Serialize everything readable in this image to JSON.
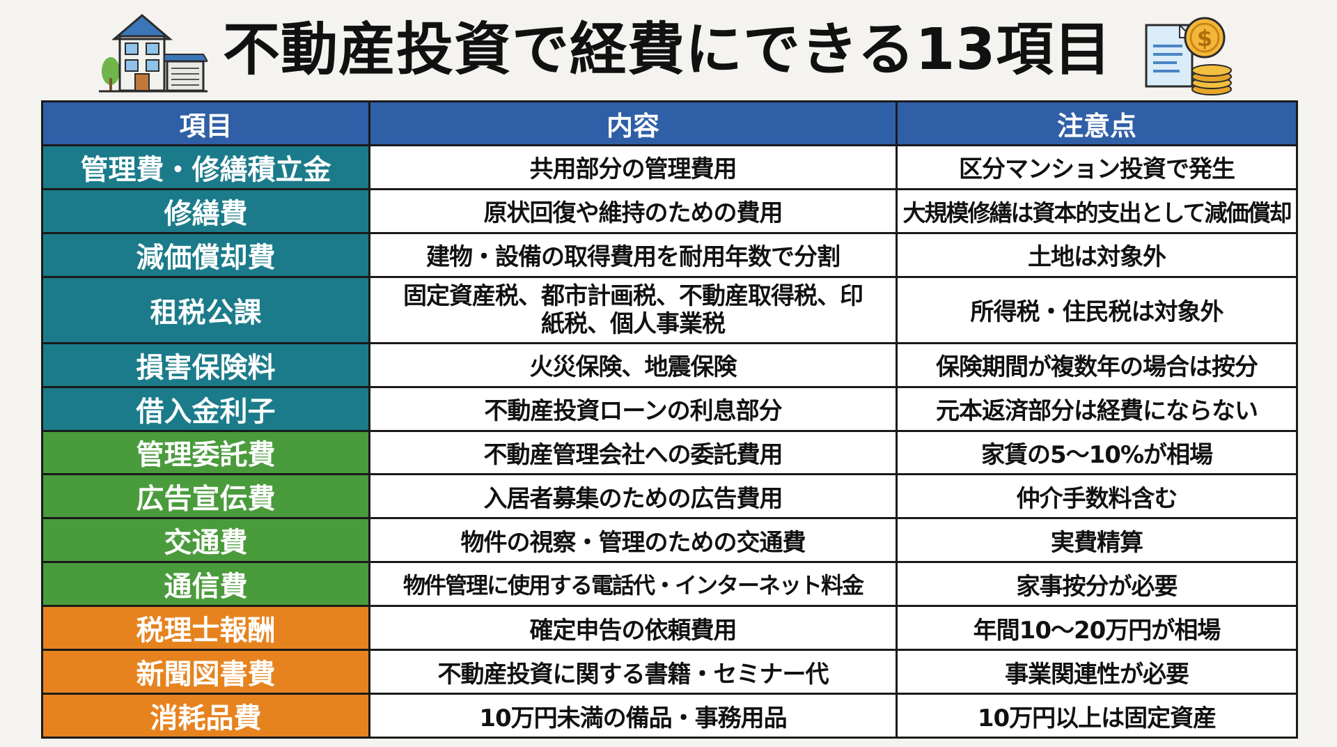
{
  "title": "不動産投資で経費にできる13項目",
  "icons": {
    "left": "house-garage-icon",
    "right": "document-coins-icon"
  },
  "colors": {
    "header": "#2f5fa6",
    "teal": "#1b7b8a",
    "green": "#4a9b3c",
    "orange": "#e6831f"
  },
  "table": {
    "headers": [
      "項目",
      "内容",
      "注意点"
    ],
    "rows": [
      {
        "item": "管理費・修繕積立金",
        "content": "共用部分の管理費用",
        "note": "区分マンション投資で発生",
        "category": "teal"
      },
      {
        "item": "修繕費",
        "content": "原状回復や維持のための費用",
        "note": "大規模修繕は資本的支出として減価償却",
        "category": "teal"
      },
      {
        "item": "減価償却費",
        "content": "建物・設備の取得費用を耐用年数で分割",
        "note": "土地は対象外",
        "category": "teal"
      },
      {
        "item": "租税公課",
        "content": "固定資産税、都市計画税、不動産取得税、印紙税、個人事業税",
        "note": "所得税・住民税は対象外",
        "category": "teal"
      },
      {
        "item": "損害保険料",
        "content": "火災保険、地震保険",
        "note": "保険期間が複数年の場合は按分",
        "category": "teal"
      },
      {
        "item": "借入金利子",
        "content": "不動産投資ローンの利息部分",
        "note": "元本返済部分は経費にならない",
        "category": "teal"
      },
      {
        "item": "管理委託費",
        "content": "不動産管理会社への委託費用",
        "note": "家賃の5〜10%が相場",
        "category": "green"
      },
      {
        "item": "広告宣伝費",
        "content": "入居者募集のための広告費用",
        "note": "仲介手数料含む",
        "category": "green"
      },
      {
        "item": "交通費",
        "content": "物件の視察・管理のための交通費",
        "note": "実費精算",
        "category": "green"
      },
      {
        "item": "通信費",
        "content": "物件管理に使用する電話代・インターネット料金",
        "note": "家事按分が必要",
        "category": "green"
      },
      {
        "item": "税理士報酬",
        "content": "確定申告の依頼費用",
        "note": "年間10〜20万円が相場",
        "category": "orange"
      },
      {
        "item": "新聞図書費",
        "content": "不動産投資に関する書籍・セミナー代",
        "note": "事業関連性が必要",
        "category": "orange"
      },
      {
        "item": "消耗品費",
        "content": "10万円未満の備品・事務用品",
        "note": "10万円以上は固定資産",
        "category": "orange"
      }
    ]
  }
}
